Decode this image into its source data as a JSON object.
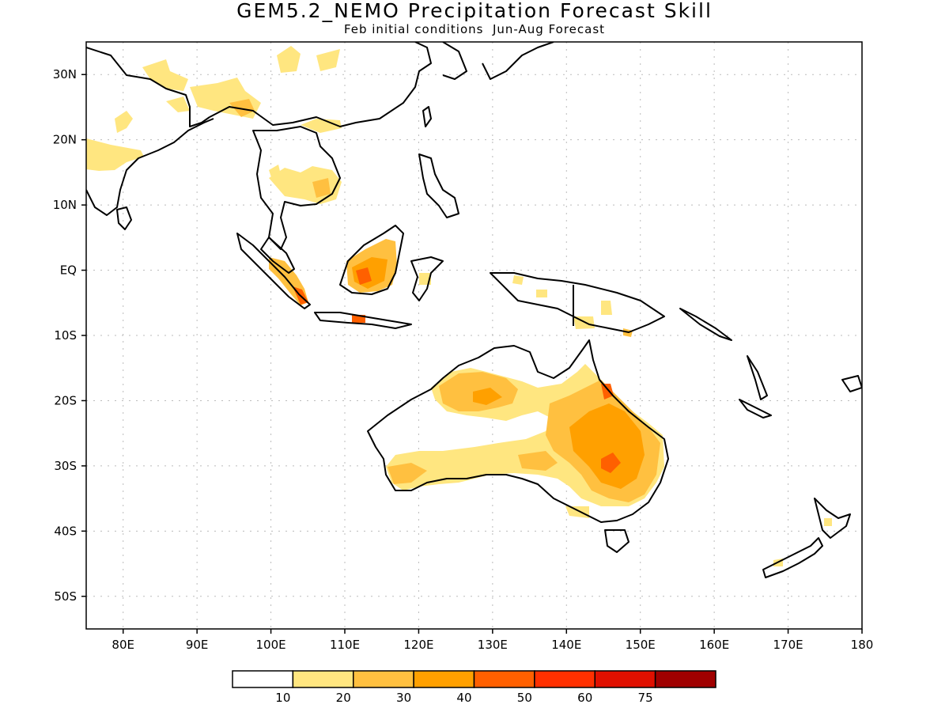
{
  "title": "GEM5.2_NEMO Precipitation Forecast Skill",
  "subtitle": "Feb initial conditions  Jun-Aug Forecast",
  "map": {
    "lon_range": [
      75,
      180
    ],
    "lat_range": [
      -55,
      35
    ],
    "lat_ticks": [
      {
        "lat": 30,
        "label": "30N"
      },
      {
        "lat": 20,
        "label": "20N"
      },
      {
        "lat": 10,
        "label": "10N"
      },
      {
        "lat": 0,
        "label": "EQ"
      },
      {
        "lat": -10,
        "label": "10S"
      },
      {
        "lat": -20,
        "label": "20S"
      },
      {
        "lat": -30,
        "label": "30S"
      },
      {
        "lat": -40,
        "label": "40S"
      },
      {
        "lat": -50,
        "label": "50S"
      }
    ],
    "lon_ticks": [
      {
        "lon": 80,
        "label": "80E"
      },
      {
        "lon": 90,
        "label": "90E"
      },
      {
        "lon": 100,
        "label": "100E"
      },
      {
        "lon": 110,
        "label": "110E"
      },
      {
        "lon": 120,
        "label": "120E"
      },
      {
        "lon": 130,
        "label": "130E"
      },
      {
        "lon": 140,
        "label": "140E"
      },
      {
        "lon": 150,
        "label": "150E"
      },
      {
        "lon": 160,
        "label": "160E"
      },
      {
        "lon": 170,
        "label": "170E"
      },
      {
        "lon": 180,
        "label": "180"
      }
    ],
    "grid": true
  },
  "colorbar": {
    "levels": [
      "10",
      "20",
      "30",
      "40",
      "50",
      "60",
      "75"
    ],
    "colors": [
      "#ffffff",
      "#ffe680",
      "#ffc040",
      "#ffa000",
      "#ff6000",
      "#ff3000",
      "#e01000",
      "#a00000"
    ]
  }
}
